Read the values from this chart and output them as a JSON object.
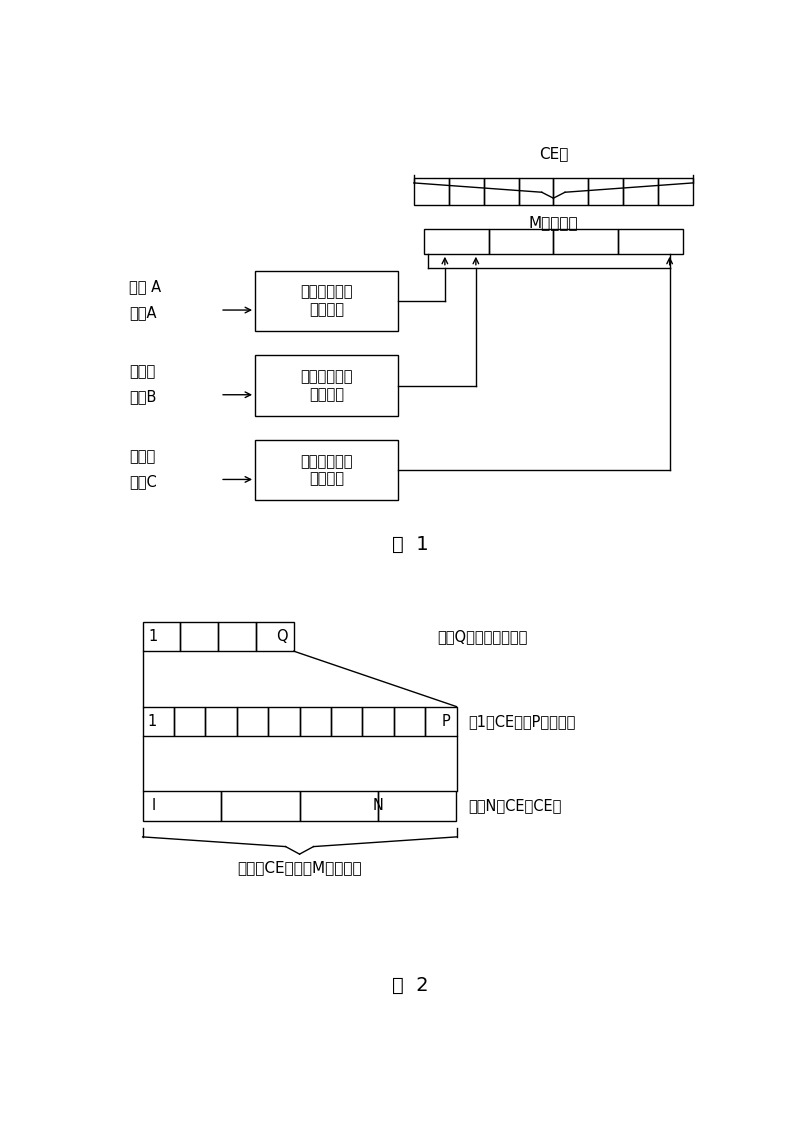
{
  "bg_color": "#ffffff",
  "fig1": {
    "title": "图  1",
    "ce_group_label": "CE组",
    "m_symbol_label": "M个符号组",
    "box_label": "编码、比特交\n织、调制",
    "inputs": [
      {
        "line1": "信息 A",
        "line2": "特包A"
      },
      {
        "line1": "信息比",
        "line2": "特包B"
      },
      {
        "line1": "信息比",
        "line2": "特包C"
      }
    ]
  },
  "fig2": {
    "title": "图  2",
    "row1_label": "包括Q个符号的符号组",
    "row2_label": "在1个CE中的P个符号组",
    "row3_label": "包括N个CE的CE组",
    "brace_label": "包括在CE组中的M个符号组"
  }
}
